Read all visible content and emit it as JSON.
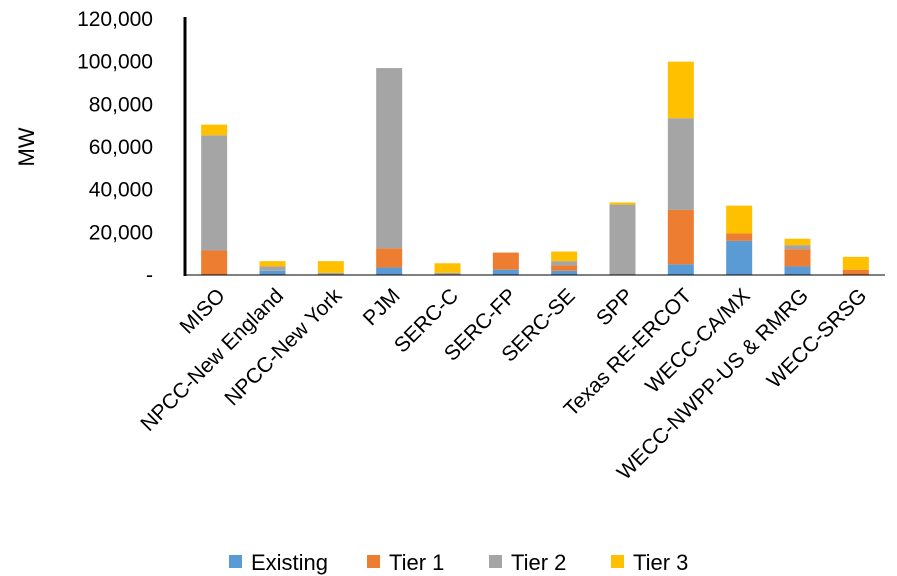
{
  "chart_data": {
    "type": "bar",
    "stacked": true,
    "ylabel": "MW",
    "ylim": [
      0,
      120000
    ],
    "yticks": [
      0,
      20000,
      40000,
      60000,
      80000,
      100000,
      120000
    ],
    "ytick_labels": [
      "-",
      "20,000",
      "40,000",
      "60,000",
      "80,000",
      "100,000",
      "120,000"
    ],
    "grid": false,
    "legend_position": "bottom",
    "categories": [
      "MISO",
      "NPCC-New England",
      "NPCC-New York",
      "PJM",
      "SERC-C",
      "SERC-FP",
      "SERC-SE",
      "SPP",
      "Texas RE-ERCOT",
      "WECC-CA/MX",
      "WECC-NWPP-US & RMRG",
      "WECC-SRSG"
    ],
    "series": [
      {
        "name": "Existing",
        "color": "#5B9BD5",
        "values": [
          0,
          2000,
          0,
          3500,
          0,
          2500,
          2000,
          0,
          5000,
          16000,
          4000,
          0
        ]
      },
      {
        "name": "Tier 1",
        "color": "#ED7D31",
        "values": [
          11500,
          0,
          0,
          9000,
          0,
          8000,
          2500,
          0,
          25500,
          3500,
          8000,
          2500
        ]
      },
      {
        "name": "Tier 2",
        "color": "#A5A5A5",
        "values": [
          54000,
          2000,
          1000,
          84500,
          1000,
          0,
          2000,
          33000,
          43000,
          0,
          2000,
          0
        ]
      },
      {
        "name": "Tier 3",
        "color": "#FFC000",
        "values": [
          5000,
          2500,
          5500,
          0,
          4500,
          0,
          4500,
          1000,
          26500,
          13000,
          3000,
          6000
        ]
      }
    ]
  }
}
